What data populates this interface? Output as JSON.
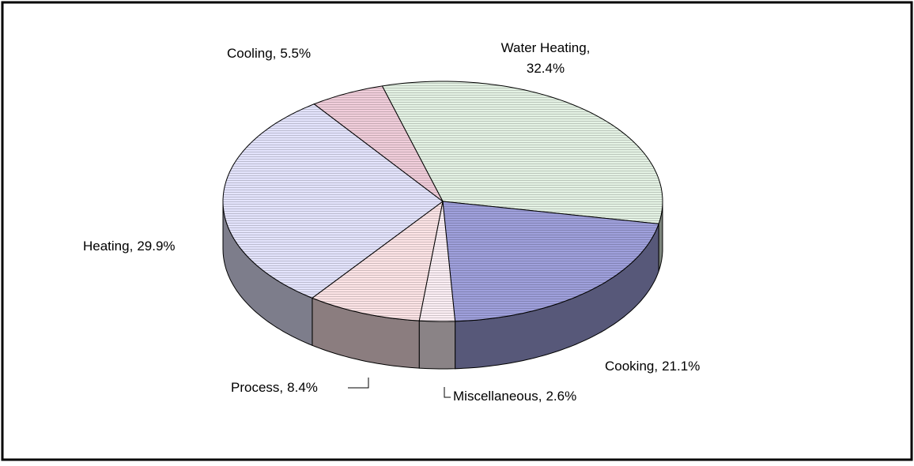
{
  "chart_data": {
    "type": "pie",
    "categories": [
      "Water Heating,",
      "Cooking,",
      "Miscellaneous,",
      "Process,",
      "Heating,",
      "Cooling,"
    ],
    "values": [
      32.4,
      21.1,
      2.6,
      8.4,
      29.9,
      5.5
    ],
    "value_labels": [
      "32.4%",
      "21.1%",
      "2.6%",
      "8.4%",
      "29.9%",
      "5.5%"
    ],
    "colors": [
      "#e4f2e4",
      "#9fa0dc",
      "#fbeef4",
      "#fde4e6",
      "#e4e4fd",
      "#f1cedb"
    ]
  }
}
